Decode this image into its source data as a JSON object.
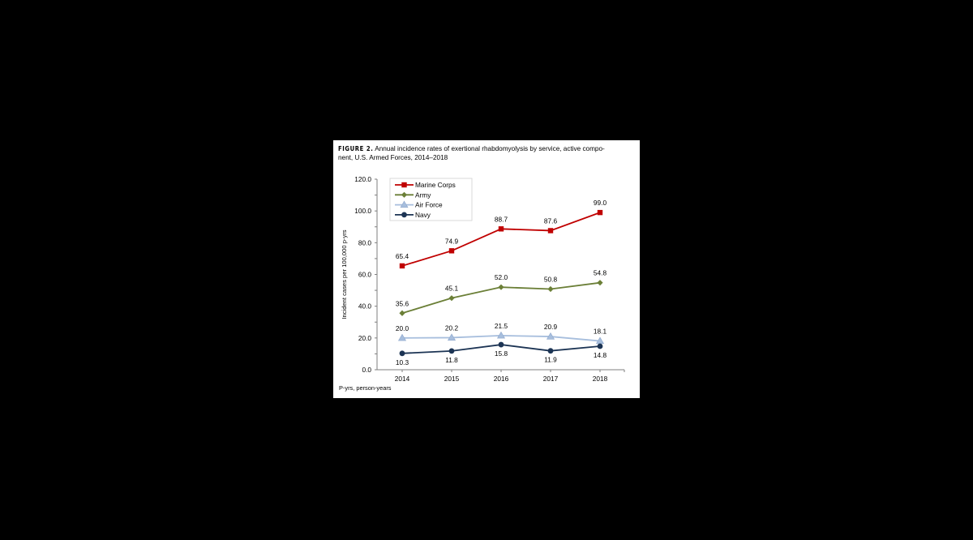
{
  "figure": {
    "label": "FIGURE 2.",
    "caption": "Annual incidence rates of exertional rhabdomyolysis by service, active component, U.S. Armed Forces, 2014–2018",
    "caption_line1": " Annual incidence rates of exertional rhabdomyolysis by service, active compo-",
    "caption_line2": "nent, U.S. Armed Forces, 2014–2018",
    "footnote": "P-yrs, person-years"
  },
  "chart_data": {
    "type": "line",
    "title": "Annual incidence rates of exertional rhabdomyolysis by service, active component, U.S. Armed Forces, 2014–2018",
    "xlabel": "",
    "ylabel": "Incident cases per 100,000 p-yrs",
    "categories": [
      "2014",
      "2015",
      "2016",
      "2017",
      "2018"
    ],
    "ylim": [
      0,
      120
    ],
    "yticks": [
      "0.0",
      "20.0",
      "40.0",
      "60.0",
      "80.0",
      "100.0",
      "120.0"
    ],
    "grid": false,
    "legend_position": "upper-left-inside",
    "series": [
      {
        "name": "Marine Corps",
        "color": "#c00000",
        "marker": "square",
        "values": [
          65.4,
          74.9,
          88.7,
          87.6,
          99.0
        ],
        "labels": [
          "65.4",
          "74.9",
          "88.7",
          "87.6",
          "99.0"
        ],
        "label_pos": "above"
      },
      {
        "name": "Army",
        "color": "#6b7f37",
        "marker": "diamond",
        "values": [
          35.6,
          45.1,
          52.0,
          50.8,
          54.8
        ],
        "labels": [
          "35.6",
          "45.1",
          "52.0",
          "50.8",
          "54.8"
        ],
        "label_pos": "above"
      },
      {
        "name": "Air Force",
        "color": "#a7bedd",
        "marker": "triangle",
        "values": [
          20.0,
          20.2,
          21.5,
          20.9,
          18.1
        ],
        "labels": [
          "20.0",
          "20.2",
          "21.5",
          "20.9",
          "18.1"
        ],
        "label_pos": "above"
      },
      {
        "name": "Navy",
        "color": "#1c3454",
        "marker": "circle",
        "values": [
          10.3,
          11.8,
          15.8,
          11.9,
          14.8
        ],
        "labels": [
          "10.3",
          "11.8",
          "15.8",
          "11.9",
          "14.8"
        ],
        "label_pos": "below"
      }
    ]
  }
}
